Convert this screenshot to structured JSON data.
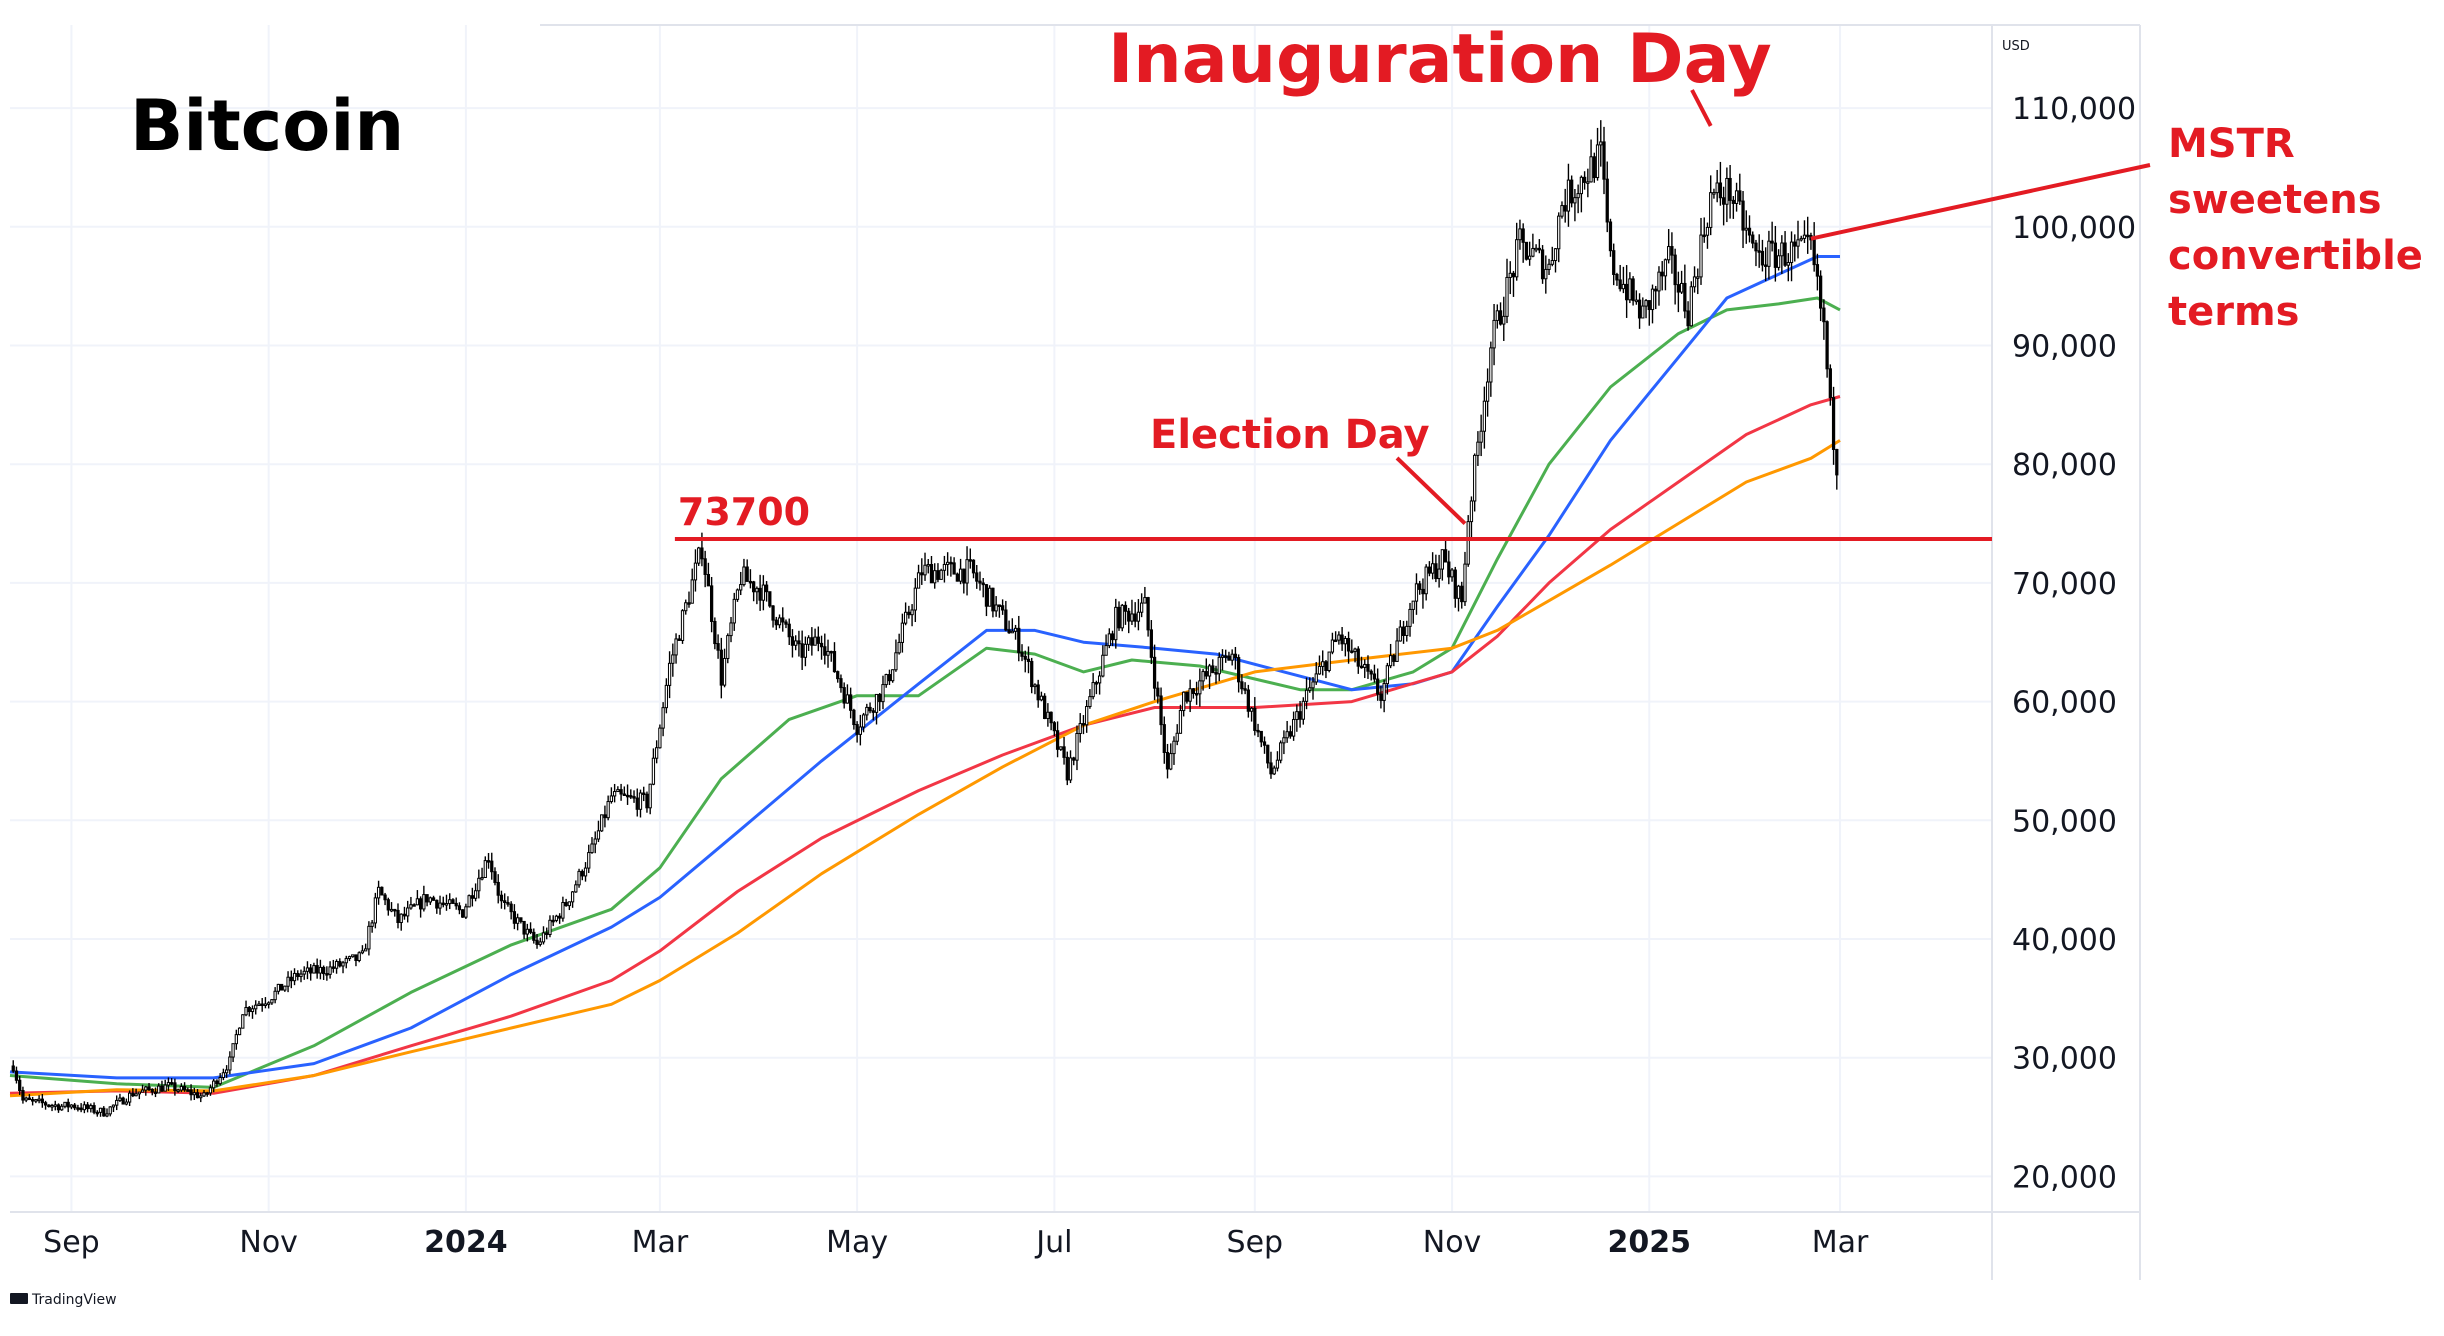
{
  "chart_data": {
    "type": "line",
    "title": "Bitcoin",
    "currency": "USD",
    "watermark": "TradingView",
    "y_axis": {
      "ticks": [
        20000,
        30000,
        40000,
        50000,
        60000,
        70000,
        80000,
        90000,
        100000,
        110000
      ],
      "tick_labels": [
        "20,000",
        "30,000",
        "40,000",
        "50,000",
        "60,000",
        "70,000",
        "80,000",
        "90,000",
        "100,000",
        "110,000"
      ],
      "range": [
        17000,
        117000
      ],
      "position": "right"
    },
    "x_axis": {
      "range": [
        "2023-08-13",
        "2025-04-17"
      ],
      "ticks": [
        {
          "label": "Sep",
          "date": "2023-09-01",
          "major": false
        },
        {
          "label": "Nov",
          "date": "2023-11-01",
          "major": false
        },
        {
          "label": "2024",
          "date": "2024-01-01",
          "major": true
        },
        {
          "label": "Mar",
          "date": "2024-03-01",
          "major": false
        },
        {
          "label": "May",
          "date": "2024-05-01",
          "major": false
        },
        {
          "label": "Jul",
          "date": "2024-07-01",
          "major": false
        },
        {
          "label": "Sep",
          "date": "2024-09-01",
          "major": false
        },
        {
          "label": "Nov",
          "date": "2024-11-01",
          "major": false
        },
        {
          "label": "2025",
          "date": "2025-01-01",
          "major": true
        },
        {
          "label": "Mar",
          "date": "2025-03-01",
          "major": false
        }
      ]
    },
    "grid": true,
    "price_series": {
      "kind": "candlestick",
      "color": "#000000",
      "points": [
        [
          "2023-08-14",
          29300
        ],
        [
          "2023-08-17",
          26400
        ],
        [
          "2023-08-29",
          25900
        ],
        [
          "2023-09-01",
          26000
        ],
        [
          "2023-09-11",
          25400
        ],
        [
          "2023-09-20",
          27000
        ],
        [
          "2023-10-01",
          27600
        ],
        [
          "2023-10-12",
          26700
        ],
        [
          "2023-10-20",
          29700
        ],
        [
          "2023-10-24",
          34000
        ],
        [
          "2023-11-01",
          35000
        ],
        [
          "2023-11-10",
          37000
        ],
        [
          "2023-11-20",
          37500
        ],
        [
          "2023-11-30",
          38500
        ],
        [
          "2023-12-05",
          44000
        ],
        [
          "2023-12-11",
          41500
        ],
        [
          "2023-12-20",
          43500
        ],
        [
          "2023-12-31",
          42300
        ],
        [
          "2024-01-08",
          47000
        ],
        [
          "2024-01-12",
          43000
        ],
        [
          "2024-01-23",
          39500
        ],
        [
          "2024-02-01",
          43000
        ],
        [
          "2024-02-09",
          47500
        ],
        [
          "2024-02-15",
          52000
        ],
        [
          "2024-02-26",
          51500
        ],
        [
          "2024-03-04",
          63000
        ],
        [
          "2024-03-14",
          73000
        ],
        [
          "2024-03-20",
          62000
        ],
        [
          "2024-03-26",
          70500
        ],
        [
          "2024-04-01",
          69500
        ],
        [
          "2024-04-13",
          64000
        ],
        [
          "2024-04-20",
          65500
        ],
        [
          "2024-05-01",
          58000
        ],
        [
          "2024-05-10",
          61500
        ],
        [
          "2024-05-21",
          71000
        ],
        [
          "2024-06-05",
          71000
        ],
        [
          "2024-06-20",
          65000
        ],
        [
          "2024-07-05",
          54000
        ],
        [
          "2024-07-20",
          67000
        ],
        [
          "2024-07-29",
          68000
        ],
        [
          "2024-08-05",
          54000
        ],
        [
          "2024-08-10",
          60500
        ],
        [
          "2024-08-25",
          64000
        ],
        [
          "2024-09-06",
          54000
        ],
        [
          "2024-09-18",
          61000
        ],
        [
          "2024-09-27",
          65500
        ],
        [
          "2024-10-10",
          60500
        ],
        [
          "2024-10-20",
          69000
        ],
        [
          "2024-10-29",
          72000
        ],
        [
          "2024-11-04",
          68500
        ],
        [
          "2024-11-06",
          75500
        ],
        [
          "2024-11-13",
          90000
        ],
        [
          "2024-11-22",
          98500
        ],
        [
          "2024-12-01",
          96500
        ],
        [
          "2024-12-05",
          102000
        ],
        [
          "2024-12-17",
          106000
        ],
        [
          "2024-12-20",
          97000
        ],
        [
          "2024-12-30",
          92500
        ],
        [
          "2025-01-07",
          97000
        ],
        [
          "2025-01-13",
          93000
        ],
        [
          "2025-01-20",
          102500
        ],
        [
          "2025-01-26",
          103000
        ],
        [
          "2025-02-03",
          97500
        ],
        [
          "2025-02-20",
          98000
        ],
        [
          "2025-02-24",
          91500
        ],
        [
          "2025-02-26",
          84500
        ],
        [
          "2025-02-28",
          80000
        ]
      ]
    },
    "series": [
      {
        "name": "",
        "color": "#4caf50",
        "points": [
          [
            "2023-08-13",
            28500
          ],
          [
            "2023-09-15",
            27800
          ],
          [
            "2023-10-15",
            27500
          ],
          [
            "2023-11-15",
            31000
          ],
          [
            "2023-12-15",
            35500
          ],
          [
            "2024-01-15",
            39500
          ],
          [
            "2024-02-15",
            42500
          ],
          [
            "2024-03-01",
            46000
          ],
          [
            "2024-03-20",
            53500
          ],
          [
            "2024-04-10",
            58500
          ],
          [
            "2024-05-01",
            60500
          ],
          [
            "2024-05-20",
            60500
          ],
          [
            "2024-06-10",
            64500
          ],
          [
            "2024-06-25",
            64000
          ],
          [
            "2024-07-10",
            62500
          ],
          [
            "2024-07-25",
            63500
          ],
          [
            "2024-08-15",
            63000
          ],
          [
            "2024-09-15",
            61000
          ],
          [
            "2024-10-01",
            61000
          ],
          [
            "2024-10-20",
            62500
          ],
          [
            "2024-11-01",
            64500
          ],
          [
            "2024-11-15",
            72000
          ],
          [
            "2024-12-01",
            80000
          ],
          [
            "2024-12-20",
            86500
          ],
          [
            "2025-01-10",
            91000
          ],
          [
            "2025-01-25",
            93000
          ],
          [
            "2025-02-10",
            93500
          ],
          [
            "2025-02-22",
            94000
          ],
          [
            "2025-03-01",
            93000
          ]
        ]
      },
      {
        "name": "",
        "color": "#2962ff",
        "points": [
          [
            "2023-08-13",
            28800
          ],
          [
            "2023-09-15",
            28300
          ],
          [
            "2023-10-15",
            28300
          ],
          [
            "2023-11-15",
            29500
          ],
          [
            "2023-12-15",
            32500
          ],
          [
            "2024-01-15",
            37000
          ],
          [
            "2024-02-15",
            41000
          ],
          [
            "2024-03-01",
            43500
          ],
          [
            "2024-03-25",
            49000
          ],
          [
            "2024-04-20",
            55000
          ],
          [
            "2024-05-20",
            61500
          ],
          [
            "2024-06-10",
            66000
          ],
          [
            "2024-06-25",
            66000
          ],
          [
            "2024-07-10",
            65000
          ],
          [
            "2024-08-01",
            64500
          ],
          [
            "2024-08-20",
            64000
          ],
          [
            "2024-09-10",
            62500
          ],
          [
            "2024-10-01",
            61000
          ],
          [
            "2024-10-20",
            61500
          ],
          [
            "2024-11-01",
            62500
          ],
          [
            "2024-11-15",
            68000
          ],
          [
            "2024-12-01",
            74000
          ],
          [
            "2024-12-20",
            82000
          ],
          [
            "2025-01-10",
            89000
          ],
          [
            "2025-01-25",
            94000
          ],
          [
            "2025-02-10",
            96000
          ],
          [
            "2025-02-22",
            97500
          ],
          [
            "2025-03-01",
            97500
          ]
        ]
      },
      {
        "name": "",
        "color": "#f23645",
        "points": [
          [
            "2023-08-13",
            27000
          ],
          [
            "2023-09-15",
            27200
          ],
          [
            "2023-10-15",
            27000
          ],
          [
            "2023-11-15",
            28500
          ],
          [
            "2023-12-15",
            31000
          ],
          [
            "2024-01-15",
            33500
          ],
          [
            "2024-02-15",
            36500
          ],
          [
            "2024-03-01",
            39000
          ],
          [
            "2024-03-25",
            44000
          ],
          [
            "2024-04-20",
            48500
          ],
          [
            "2024-05-20",
            52500
          ],
          [
            "2024-06-15",
            55500
          ],
          [
            "2024-07-10",
            58000
          ],
          [
            "2024-08-01",
            59500
          ],
          [
            "2024-09-01",
            59500
          ],
          [
            "2024-10-01",
            60000
          ],
          [
            "2024-11-01",
            62500
          ],
          [
            "2024-11-15",
            65500
          ],
          [
            "2024-12-01",
            70000
          ],
          [
            "2024-12-20",
            74500
          ],
          [
            "2025-01-10",
            78500
          ],
          [
            "2025-01-31",
            82500
          ],
          [
            "2025-02-20",
            85000
          ],
          [
            "2025-03-01",
            85700
          ]
        ]
      },
      {
        "name": "",
        "color": "#ff9800",
        "points": [
          [
            "2023-08-13",
            26800
          ],
          [
            "2023-09-15",
            27300
          ],
          [
            "2023-10-15",
            27200
          ],
          [
            "2023-11-15",
            28500
          ],
          [
            "2023-12-15",
            30500
          ],
          [
            "2024-01-15",
            32500
          ],
          [
            "2024-02-15",
            34500
          ],
          [
            "2024-03-01",
            36500
          ],
          [
            "2024-03-25",
            40500
          ],
          [
            "2024-04-20",
            45500
          ],
          [
            "2024-05-20",
            50500
          ],
          [
            "2024-06-15",
            54500
          ],
          [
            "2024-07-10",
            58000
          ],
          [
            "2024-08-01",
            60000
          ],
          [
            "2024-09-01",
            62500
          ],
          [
            "2024-10-01",
            63500
          ],
          [
            "2024-11-01",
            64500
          ],
          [
            "2024-11-15",
            66000
          ],
          [
            "2024-12-01",
            68500
          ],
          [
            "2024-12-20",
            71500
          ],
          [
            "2025-01-10",
            75000
          ],
          [
            "2025-01-31",
            78500
          ],
          [
            "2025-02-20",
            80500
          ],
          [
            "2025-03-01",
            82000
          ]
        ]
      }
    ],
    "horizontal_lines": [
      {
        "value": 73700,
        "label": "73700",
        "color": "#e31b23",
        "from_date": "2024-03-01"
      }
    ],
    "annotations": [
      {
        "text": "Election Day",
        "lines": [
          "Election Day"
        ],
        "color": "#e31b23",
        "target": [
          "2024-11-05",
          75000
        ]
      },
      {
        "text": "Inauguration Day",
        "lines": [
          "Inauguration Day"
        ],
        "color": "#e31b23",
        "target": [
          "2025-01-20",
          108500
        ]
      },
      {
        "text": "MSTR sweetens convertible terms",
        "lines": [
          "MSTR",
          "sweetens",
          "convertible",
          "terms"
        ],
        "color": "#e31b23",
        "target": [
          "2025-02-20",
          99000
        ]
      }
    ]
  }
}
